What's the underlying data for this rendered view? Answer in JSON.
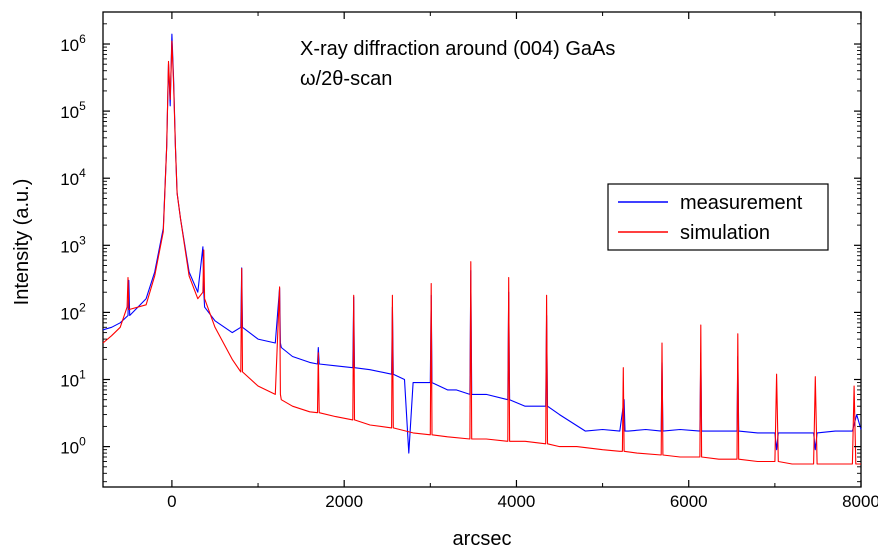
{
  "chart_data": {
    "type": "line",
    "title": "",
    "annotations": [
      "X-ray diffraction around (004) GaAs",
      "ω/2θ-scan"
    ],
    "xlabel": "arcsec",
    "ylabel": "Intensity (a.u.)",
    "xlim": [
      -800,
      8000
    ],
    "ylim": [
      0.25,
      3000000
    ],
    "y_scale": "log",
    "grid": false,
    "legend_position": "right",
    "x_ticks": [
      0,
      2000,
      4000,
      6000,
      8000
    ],
    "x_tick_labels": [
      "0",
      "2000",
      "4000",
      "6000",
      "8000"
    ],
    "y_ticks": [
      1,
      10,
      100,
      1000,
      10000,
      100000,
      1000000
    ],
    "y_tick_labels": [
      {
        "base": "10",
        "exp": "0"
      },
      {
        "base": "10",
        "exp": "1"
      },
      {
        "base": "10",
        "exp": "2"
      },
      {
        "base": "10",
        "exp": "3"
      },
      {
        "base": "10",
        "exp": "4"
      },
      {
        "base": "10",
        "exp": "5"
      },
      {
        "base": "10",
        "exp": "6"
      }
    ],
    "series": [
      {
        "name": "measurement",
        "color": "#0000ff",
        "x": [
          -800,
          -700,
          -600,
          -510,
          -500,
          -490,
          -300,
          -200,
          -100,
          -60,
          -40,
          -20,
          0,
          20,
          40,
          60,
          100,
          200,
          300,
          360,
          370,
          380,
          500,
          700,
          800,
          810,
          820,
          1000,
          1200,
          1250,
          1260,
          1270,
          1400,
          1600,
          1690,
          1700,
          1710,
          1900,
          2100,
          2110,
          2120,
          2300,
          2550,
          2560,
          2570,
          2700,
          2750,
          2800,
          3000,
          3010,
          3020,
          3200,
          3300,
          3460,
          3470,
          3480,
          3650,
          3900,
          3910,
          3920,
          4100,
          4340,
          4350,
          4360,
          4500,
          4800,
          5000,
          5200,
          5250,
          5260,
          5300,
          5500,
          5680,
          5690,
          5700,
          5900,
          6130,
          6140,
          6150,
          6350,
          6560,
          6570,
          6580,
          6800,
          7000,
          7020,
          7040,
          7200,
          7450,
          7470,
          7490,
          7700,
          7900,
          7950,
          8000
        ],
        "y": [
          55,
          60,
          70,
          90,
          300,
          90,
          160,
          400,
          1800,
          30000,
          500000,
          120000,
          1400000,
          300000,
          30000,
          6000,
          2500,
          400,
          200,
          950,
          200,
          120,
          75,
          50,
          60,
          460,
          60,
          40,
          35,
          230,
          35,
          30,
          22,
          18,
          17,
          30,
          17,
          16,
          15,
          170,
          15,
          14,
          12,
          120,
          12,
          10,
          0.8,
          9,
          9,
          180,
          9,
          7,
          7,
          6,
          420,
          6,
          6,
          5,
          200,
          5,
          4,
          4,
          90,
          4,
          3,
          1.7,
          1.8,
          1.7,
          5,
          1.7,
          1.7,
          1.8,
          1.7,
          18,
          1.7,
          1.8,
          1.7,
          25,
          1.7,
          1.7,
          1.7,
          22,
          1.7,
          1.6,
          1.6,
          0.9,
          1.6,
          1.6,
          1.6,
          0.9,
          1.6,
          1.7,
          1.7,
          3,
          1.8
        ]
      },
      {
        "name": "simulation",
        "color": "#ff0000",
        "x": [
          -800,
          -700,
          -600,
          -520,
          -510,
          -500,
          -300,
          -200,
          -100,
          -60,
          -40,
          -20,
          0,
          20,
          40,
          60,
          100,
          200,
          300,
          360,
          370,
          380,
          500,
          700,
          800,
          810,
          820,
          1000,
          1200,
          1250,
          1260,
          1270,
          1400,
          1600,
          1690,
          1700,
          1710,
          1900,
          2100,
          2110,
          2120,
          2300,
          2550,
          2560,
          2570,
          2800,
          3000,
          3010,
          3020,
          3200,
          3460,
          3470,
          3480,
          3650,
          3900,
          3910,
          3920,
          4100,
          4340,
          4350,
          4360,
          4500,
          4700,
          5000,
          5200,
          5230,
          5240,
          5250,
          5400,
          5680,
          5690,
          5700,
          5900,
          6130,
          6140,
          6150,
          6350,
          6560,
          6570,
          6580,
          6800,
          7000,
          7020,
          7040,
          7200,
          7450,
          7470,
          7490,
          7700,
          7900,
          7920,
          7940,
          8000
        ],
        "y": [
          35,
          45,
          60,
          120,
          330,
          110,
          130,
          350,
          1600,
          30000,
          550000,
          150000,
          1100000,
          250000,
          30000,
          6000,
          2500,
          350,
          160,
          200,
          850,
          160,
          60,
          20,
          13,
          450,
          13,
          8,
          6,
          240,
          6,
          5,
          4,
          3.3,
          3.2,
          25,
          3.2,
          2.8,
          2.5,
          180,
          2.5,
          2.1,
          1.9,
          180,
          1.9,
          1.6,
          1.5,
          270,
          1.5,
          1.4,
          1.3,
          570,
          1.3,
          1.3,
          1.2,
          330,
          1.2,
          1.2,
          1.1,
          180,
          1.1,
          1,
          1,
          0.9,
          0.85,
          0.85,
          15,
          0.85,
          0.8,
          0.75,
          35,
          0.75,
          0.7,
          0.7,
          65,
          0.7,
          0.65,
          0.65,
          48,
          0.65,
          0.6,
          0.6,
          12,
          0.6,
          0.55,
          0.55,
          11,
          0.55,
          0.55,
          0.55,
          8,
          0.55,
          0.55
        ]
      }
    ]
  }
}
